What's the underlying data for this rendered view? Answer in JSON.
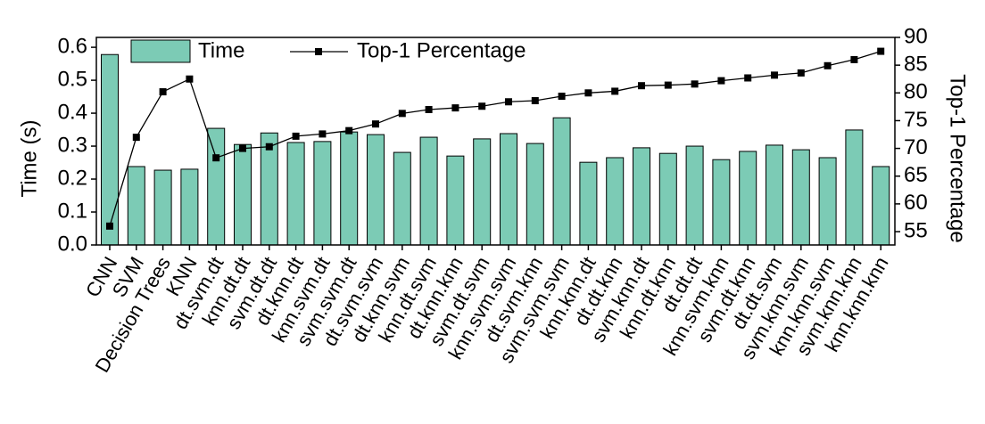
{
  "chart_data": {
    "type": "bar_line",
    "categories": [
      "CNN",
      "SVM",
      "Decision Trees",
      "KNN",
      "dt.svm.dt",
      "knn.dt.dt",
      "svm.dt.dt",
      "dt.knn.dt",
      "knn.svm.dt",
      "svm.svm.dt",
      "dt.svm.svm",
      "dt.knn.svm",
      "knn.dt.svm",
      "dt.knn.knn",
      "svm.dt.svm",
      "knn.svm.svm",
      "dt.svm.knn",
      "svm.svm.svm",
      "knn.knn.dt",
      "dt.dt.knn",
      "svm.knn.dt",
      "knn.dt.knn",
      "dt.dt.dt",
      "knn.svm.knn",
      "svm.dt.knn",
      "dt.dt.svm",
      "svm.knn.svm",
      "knn.knn.svm",
      "svm.knn.knn",
      "knn.knn.knn"
    ],
    "series": [
      {
        "name": "Time",
        "color": "#7ccbb5",
        "values": [
          0.578,
          0.238,
          0.227,
          0.23,
          0.354,
          0.305,
          0.34,
          0.311,
          0.314,
          0.343,
          0.335,
          0.281,
          0.327,
          0.27,
          0.322,
          0.338,
          0.308,
          0.386,
          0.251,
          0.265,
          0.295,
          0.278,
          0.3,
          0.259,
          0.284,
          0.303,
          0.289,
          0.265,
          0.349,
          0.238
        ]
      },
      {
        "name": "Top-1 Percentage",
        "color": "#000000",
        "axis": "y2",
        "values": [
          56,
          72,
          80.2,
          82.5,
          68.3,
          70,
          70.3,
          72.2,
          72.6,
          73.2,
          74.4,
          76.3,
          77,
          77.3,
          77.6,
          78.4,
          78.6,
          79.4,
          80,
          80.3,
          81.3,
          81.4,
          81.6,
          82.2,
          82.7,
          83.2,
          83.6,
          84.9,
          86,
          87.5
        ]
      }
    ],
    "ylabel": "Time (s)",
    "y2label": "Top-1 Percentage",
    "ylim": [
      0,
      0.63
    ],
    "yticks": [
      {
        "value": 0,
        "label": "0.0"
      },
      0.1,
      0.2,
      0.3,
      0.4,
      0.5,
      0.6
    ],
    "y2lim": [
      52.6,
      90
    ],
    "y2ticks": [
      55,
      60,
      65,
      70,
      75,
      80,
      85,
      90
    ],
    "legend": "top-left"
  }
}
